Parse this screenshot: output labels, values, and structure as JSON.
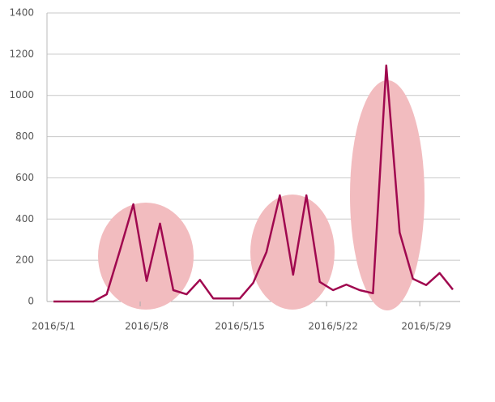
{
  "chart_data": {
    "type": "line",
    "categories": [
      "2016/5/1",
      null,
      null,
      null,
      null,
      null,
      null,
      "2016/5/8",
      null,
      null,
      null,
      null,
      null,
      null,
      "2016/5/15",
      null,
      null,
      null,
      null,
      null,
      null,
      "2016/5/22",
      null,
      null,
      null,
      null,
      null,
      null,
      "2016/5/29",
      null,
      null
    ],
    "series": [
      {
        "color": "#a0084f",
        "values": [
          0,
          0,
          0,
          0,
          35,
          250,
          472,
          100,
          378,
          55,
          35,
          105,
          15,
          15,
          15,
          90,
          240,
          515,
          130,
          515,
          95,
          55,
          82,
          55,
          40,
          1145,
          335,
          110,
          80,
          138,
          58
        ]
      }
    ],
    "ylim": [
      0,
      1400
    ],
    "yticks": [
      0,
      200,
      400,
      600,
      800,
      1000,
      1200,
      1400
    ],
    "grid": true
  }
}
